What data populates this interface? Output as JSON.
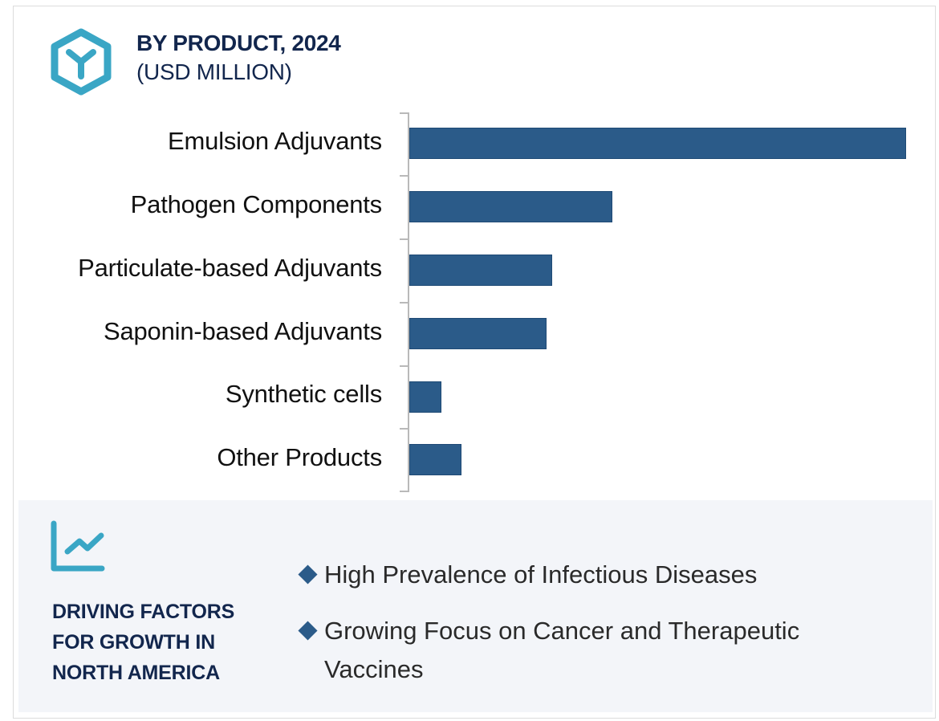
{
  "header": {
    "title": "BY PRODUCT, 2024",
    "subtitle": "(USD MILLION)",
    "icon": "hexagon-y-icon",
    "icon_color": "#3aa6c5"
  },
  "chart_data": {
    "type": "bar",
    "orientation": "horizontal",
    "title": "BY PRODUCT, 2024",
    "subtitle": "(USD MILLION)",
    "xlabel": "",
    "ylabel": "",
    "categories": [
      "Emulsion Adjuvants",
      "Pathogen Components",
      "Particulate-based Adjuvants",
      "Saponin-based Adjuvants",
      "Synthetic cells",
      "Other Products"
    ],
    "values": [
      620,
      253,
      178,
      171,
      40,
      65
    ],
    "values_note": "relative bar lengths (no numeric axis or data labels shown)",
    "bar_color": "#2b5b89",
    "grid": false,
    "legend": "none"
  },
  "labels": [
    "Emulsion Adjuvants",
    "Pathogen Components",
    "Particulate-based Adjuvants",
    "Saponin-based Adjuvants",
    "Synthetic cells",
    "Other Products"
  ],
  "panel": {
    "icon": "trend-line-chart-icon",
    "title_lines": [
      "DRIVING FACTORS",
      "FOR GROWTH IN",
      "NORTH AMERICA"
    ],
    "factors": [
      {
        "line1": "High Prevalence of Infectious Diseases",
        "line2": ""
      },
      {
        "line1": "Growing Focus on Cancer and Therapeutic",
        "line2": "Vaccines"
      }
    ],
    "bullet_color": "#2b5b89",
    "background": "#f3f5f9"
  }
}
